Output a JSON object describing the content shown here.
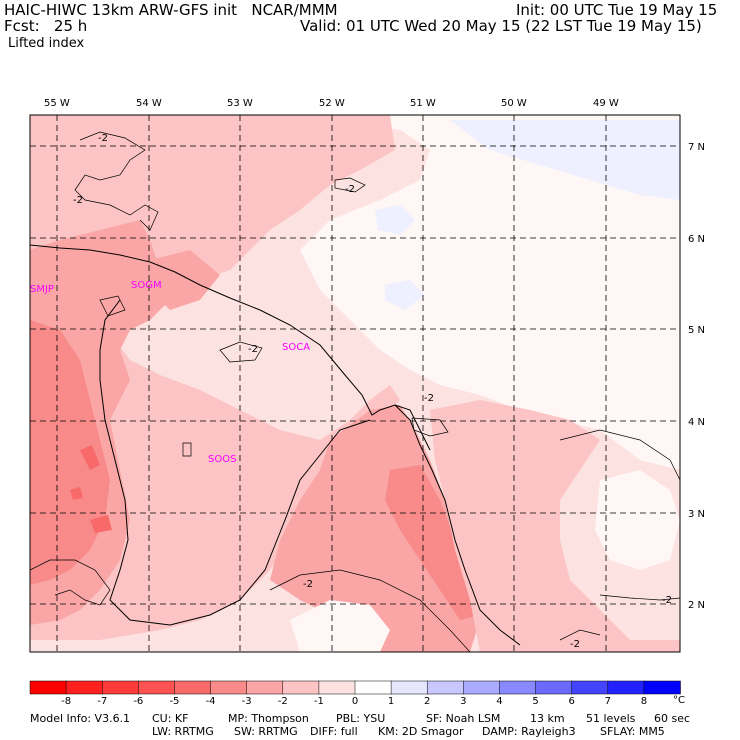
{
  "header": {
    "model_line": "HAIC-HIWC 13km ARW-GFS init   NCAR/MMM",
    "init_line": "Init: 00 UTC Tue 19 May 15",
    "fcst_line": "Fcst:   25 h",
    "valid_line": "Valid: 01 UTC Wed 20 May 15 (22 LST Tue 19 May 15)",
    "field_name": "Lifted index"
  },
  "axes": {
    "lon_labels": [
      "55 W",
      "54 W",
      "53 W",
      "52 W",
      "51 W",
      "50 W",
      "49 W"
    ],
    "lat_labels": [
      "7 N",
      "6 N",
      "5 N",
      "4 N",
      "3 N",
      "2 N"
    ]
  },
  "stations": [
    "SMJP",
    "SOGM",
    "SOCA",
    "SOOS"
  ],
  "contour_labels": [
    "-2",
    "-2",
    "-2",
    "-2",
    "-2",
    "-2",
    "-2",
    "-2"
  ],
  "colorbar": {
    "ticks": [
      "-8",
      "-7",
      "-6",
      "-5",
      "-4",
      "-3",
      "-2",
      "-1",
      "0",
      "1",
      "2",
      "3",
      "4",
      "5",
      "6",
      "7",
      "8"
    ],
    "unit": "°C",
    "colors": [
      "#ff0000",
      "#ff2020",
      "#ff3a3a",
      "#ff5252",
      "#f86a6a",
      "#f88a8a",
      "#faa6a6",
      "#fcc4c4",
      "#fde2e2",
      "#ffffff",
      "#e6e6ff",
      "#c8c8ff",
      "#aaaaff",
      "#8888ff",
      "#6a6aff",
      "#4444ff",
      "#2222ff",
      "#0000ff"
    ]
  },
  "footer": {
    "row1": [
      "Model Info: V3.6.1",
      "CU: KF",
      "MP: Thompson",
      "PBL: YSU",
      "SF: Noah LSM",
      "13 km",
      "51 levels",
      "60 sec"
    ],
    "row2": [
      "LW: RRTMG",
      "SW: RRTMG",
      "DIFF: full",
      "KM: 2D Smagor",
      "DAMP: Rayleigh3",
      "SFLAY: MM5"
    ]
  }
}
